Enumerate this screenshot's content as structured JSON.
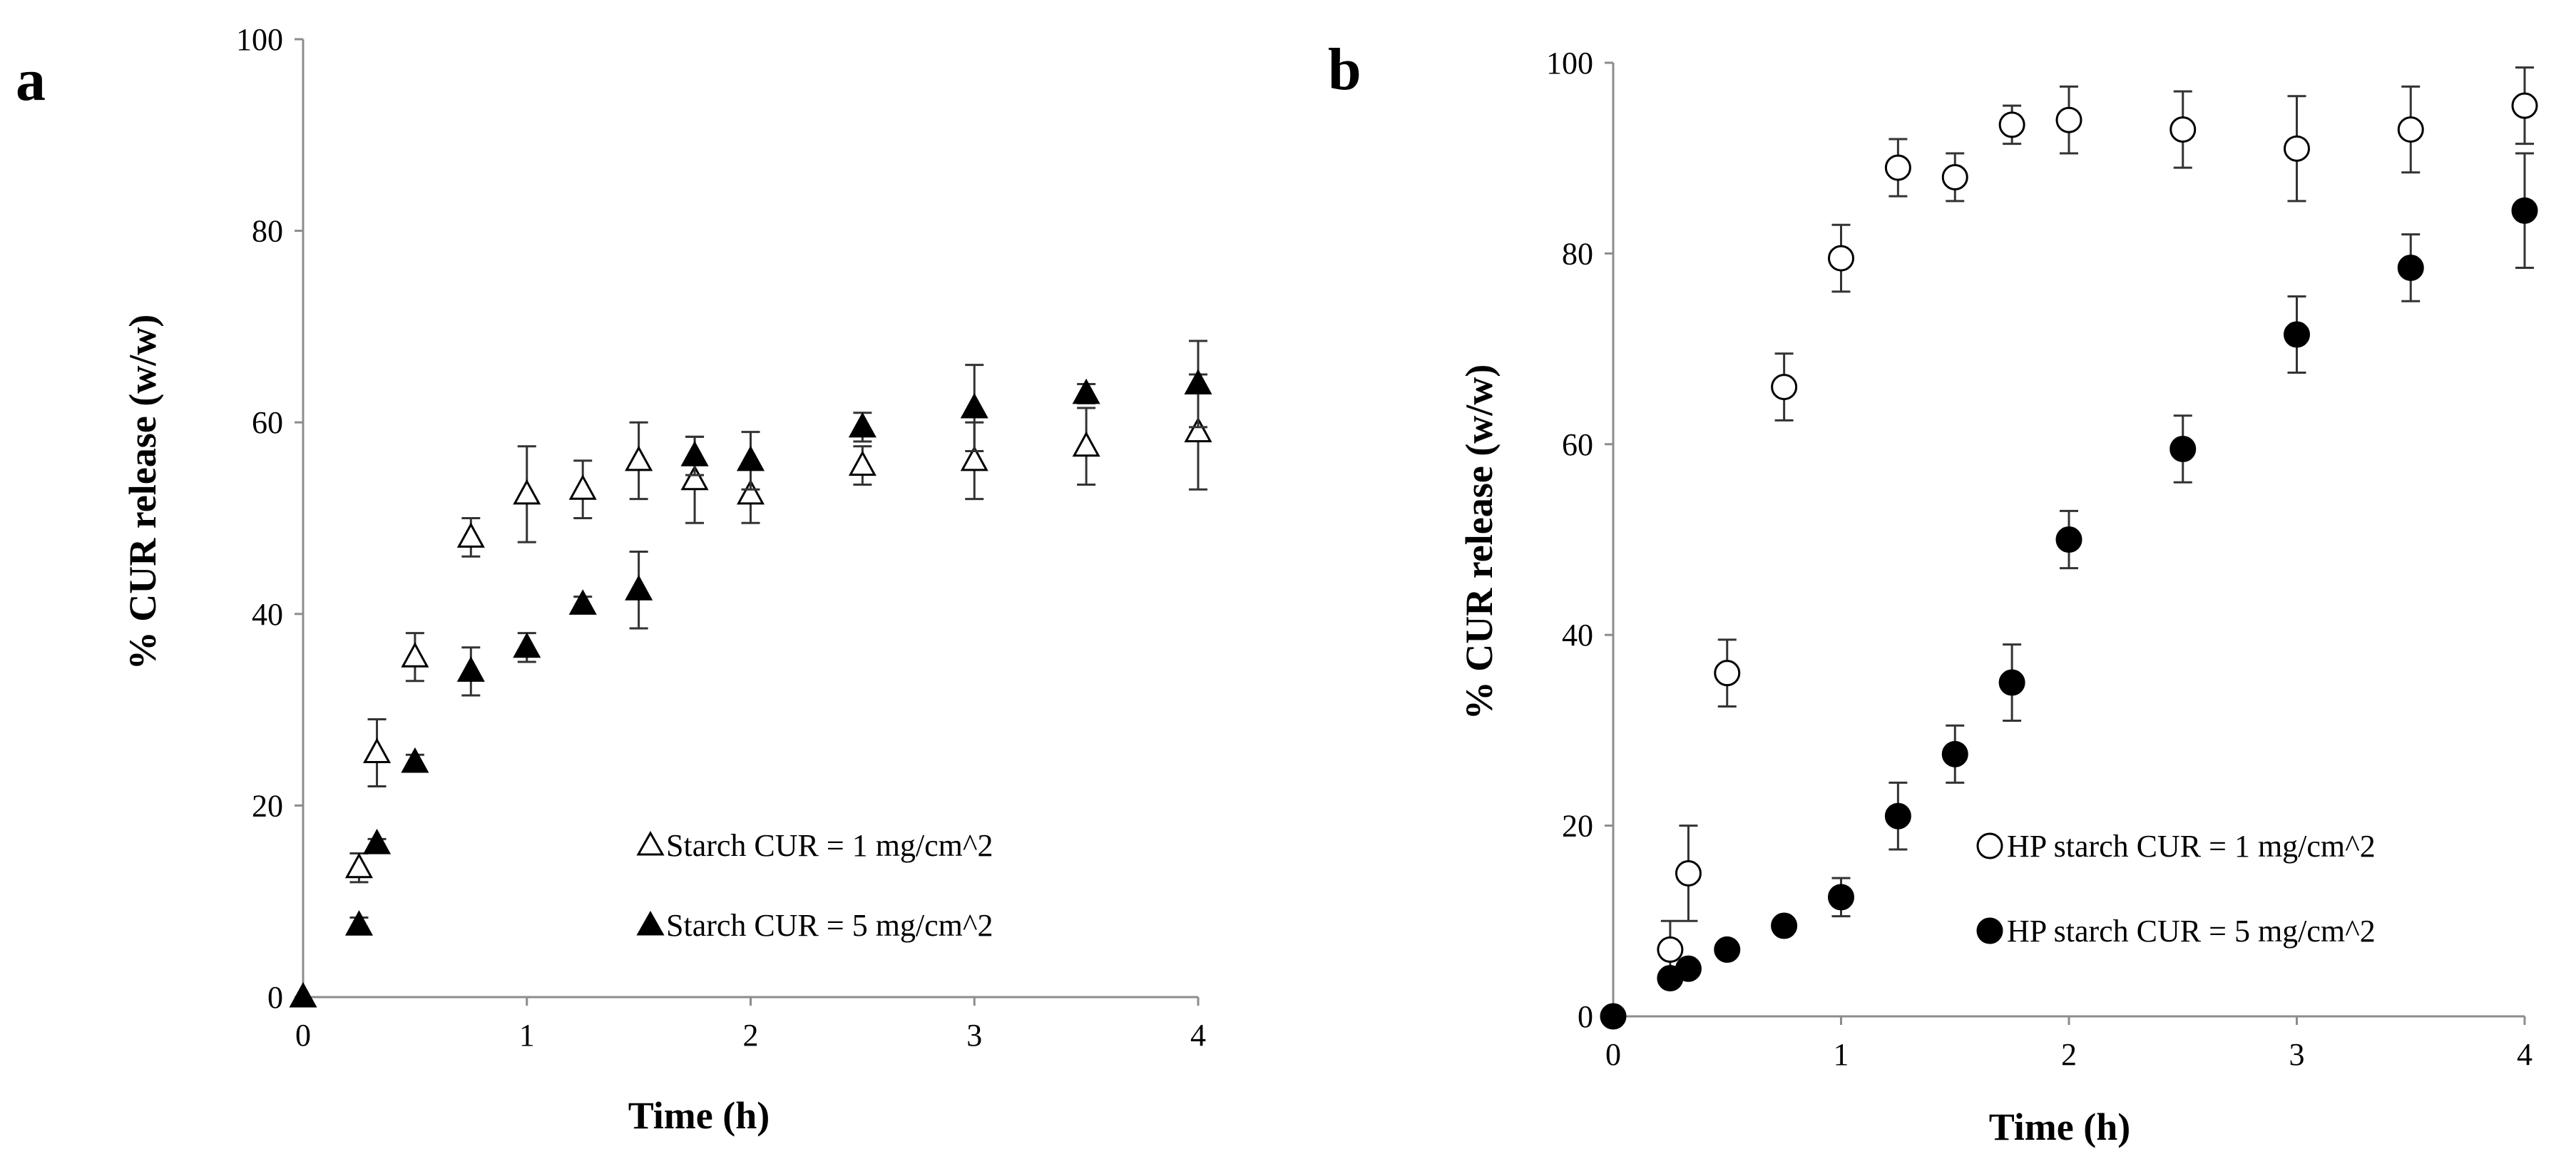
{
  "chart_data": [
    {
      "type": "scatter",
      "panel_letter": "a",
      "xlabel": "Time (h)",
      "ylabel": "% CUR release (w/w)",
      "xlim": [
        0,
        4
      ],
      "ylim": [
        0,
        100
      ],
      "xticks": [
        0,
        1,
        2,
        3,
        4
      ],
      "yticks": [
        0,
        20,
        40,
        60,
        80,
        100
      ],
      "x_tick_labels": [
        "0",
        "1",
        "2",
        "3",
        "4"
      ],
      "y_tick_labels": [
        "0",
        "20",
        "40",
        "60",
        "80",
        "100"
      ],
      "grid": false,
      "legend_position": "bottom-right",
      "series": [
        {
          "name": "Starch CUR = 1 mg/cm^2",
          "marker": "triangle",
          "filled": false,
          "x": [
            0.25,
            0.33,
            0.5,
            0.75,
            1,
            1.25,
            1.5,
            1.75,
            2,
            2.5,
            3,
            3.5,
            4
          ],
          "y": [
            13.5,
            25.5,
            35.5,
            48,
            52.5,
            53,
            56,
            54,
            52.5,
            55.5,
            56,
            57.5,
            59
          ],
          "err": [
            1.5,
            3.5,
            2.5,
            2,
            5,
            3,
            4,
            4.5,
            3,
            2,
            4,
            4,
            6
          ]
        },
        {
          "name": "Starch CUR = 5 mg/cm^2",
          "marker": "triangle",
          "filled": true,
          "x": [
            0,
            0.25,
            0.33,
            0.5,
            0.75,
            1,
            1.25,
            1.5,
            1.75,
            2,
            2.5,
            3,
            3.5,
            4
          ],
          "y": [
            0,
            7.5,
            16,
            24.5,
            34,
            36.5,
            41,
            42.5,
            56.5,
            56,
            59.5,
            61.5,
            63,
            64
          ],
          "err": [
            0,
            0.8,
            0.5,
            0.8,
            2.5,
            1.5,
            0.8,
            4,
            2,
            3,
            1.5,
            4.5,
            1,
            4.5
          ]
        }
      ]
    },
    {
      "type": "scatter",
      "panel_letter": "b",
      "xlabel": "Time (h)",
      "ylabel": "% CUR release (w/w)",
      "xlim": [
        0,
        4
      ],
      "ylim": [
        0,
        100
      ],
      "xticks": [
        0,
        1,
        2,
        3,
        4
      ],
      "yticks": [
        0,
        20,
        40,
        60,
        80,
        100
      ],
      "x_tick_labels": [
        "0",
        "1",
        "2",
        "3",
        "4"
      ],
      "y_tick_labels": [
        "0",
        "20",
        "40",
        "60",
        "80",
        "100"
      ],
      "grid": false,
      "legend_position": "bottom-right",
      "series": [
        {
          "name": "HP starch CUR = 1 mg/cm^2",
          "marker": "circle",
          "filled": false,
          "x": [
            0.25,
            0.33,
            0.5,
            0.75,
            1,
            1.25,
            1.5,
            1.75,
            2,
            2.5,
            3,
            3.5,
            4
          ],
          "y": [
            7,
            15,
            36,
            66,
            79.5,
            89,
            88,
            93.5,
            94,
            93,
            91,
            93,
            95.5
          ],
          "err": [
            3,
            5,
            3.5,
            3.5,
            3.5,
            3,
            2.5,
            2,
            3.5,
            4,
            5.5,
            4.5,
            4
          ]
        },
        {
          "name": "HP starch CUR = 5 mg/cm^2",
          "marker": "circle",
          "filled": true,
          "x": [
            0,
            0.25,
            0.33,
            0.5,
            0.75,
            1,
            1.25,
            1.5,
            1.75,
            2,
            2.5,
            3,
            3.5,
            4
          ],
          "y": [
            0,
            4,
            5,
            7,
            9.5,
            12.5,
            21,
            27.5,
            35,
            50,
            59.5,
            71.5,
            78.5,
            84.5
          ],
          "err": [
            0,
            0.5,
            0.5,
            0.5,
            0.5,
            2,
            3.5,
            3,
            4,
            3,
            3.5,
            4,
            3.5,
            6
          ]
        }
      ]
    }
  ]
}
